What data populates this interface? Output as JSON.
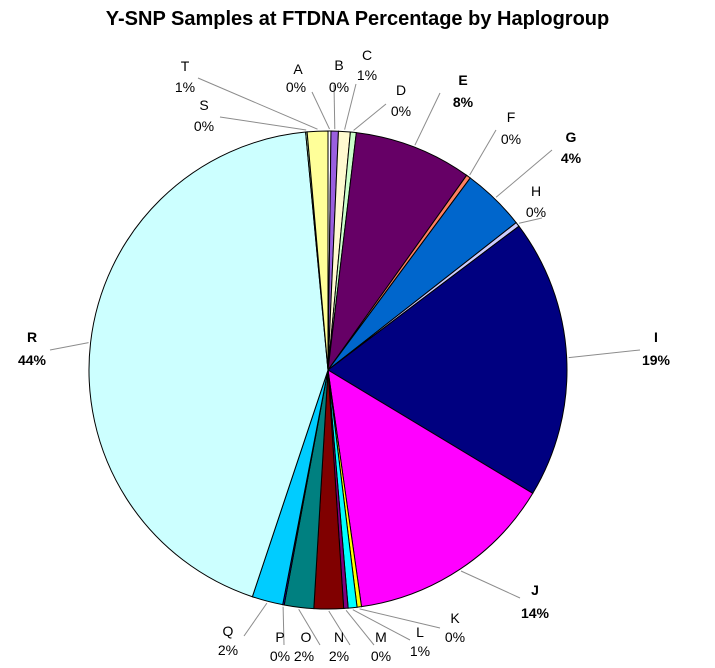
{
  "chart_data": {
    "type": "pie",
    "title": "Y-SNP Samples at FTDNA Percentage by Haplogroup",
    "slices": [
      {
        "label": "A",
        "value": 0.2,
        "display": "0%",
        "color": "#ffffff",
        "bold": false
      },
      {
        "label": "B",
        "value": 0.5,
        "display": "0%",
        "color": "#9a5fe0",
        "bold": false
      },
      {
        "label": "C",
        "value": 0.8,
        "display": "1%",
        "color": "#fffad0",
        "bold": false
      },
      {
        "label": "D",
        "value": 0.4,
        "display": "0%",
        "color": "#ccffcc",
        "bold": false
      },
      {
        "label": "E",
        "value": 8.0,
        "display": "8%",
        "color": "#660066",
        "bold": true
      },
      {
        "label": "F",
        "value": 0.3,
        "display": "0%",
        "color": "#ff8060",
        "bold": false
      },
      {
        "label": "G",
        "value": 4.3,
        "display": "4%",
        "color": "#0066cc",
        "bold": true
      },
      {
        "label": "H",
        "value": 0.3,
        "display": "0%",
        "color": "#ccccff",
        "bold": false
      },
      {
        "label": "I",
        "value": 19.0,
        "display": "19%",
        "color": "#000080",
        "bold": true
      },
      {
        "label": "J",
        "value": 14.2,
        "display": "14%",
        "color": "#ff00ff",
        "bold": true
      },
      {
        "label": "K",
        "value": 0.3,
        "display": "0%",
        "color": "#ffff00",
        "bold": false
      },
      {
        "label": "L",
        "value": 0.6,
        "display": "1%",
        "color": "#00ffff",
        "bold": false
      },
      {
        "label": "M",
        "value": 0.3,
        "display": "0%",
        "color": "#800080",
        "bold": false
      },
      {
        "label": "N",
        "value": 2.0,
        "display": "2%",
        "color": "#800000",
        "bold": false
      },
      {
        "label": "O",
        "value": 2.0,
        "display": "2%",
        "color": "#008080",
        "bold": false
      },
      {
        "label": "P",
        "value": 0.1,
        "display": "0%",
        "color": "#0000ff",
        "bold": false
      },
      {
        "label": "Q",
        "value": 2.1,
        "display": "2%",
        "color": "#00ccff",
        "bold": false
      },
      {
        "label": "R",
        "value": 43.6,
        "display": "44%",
        "color": "#ccffff",
        "bold": true
      },
      {
        "label": "S",
        "value": 0.1,
        "display": "0%",
        "color": "#ccffcc",
        "bold": false
      },
      {
        "label": "T",
        "value": 1.4,
        "display": "1%",
        "color": "#ffff99",
        "bold": false
      }
    ],
    "start_angle_deg": 0,
    "direction": "clockwise",
    "legend": "none"
  }
}
